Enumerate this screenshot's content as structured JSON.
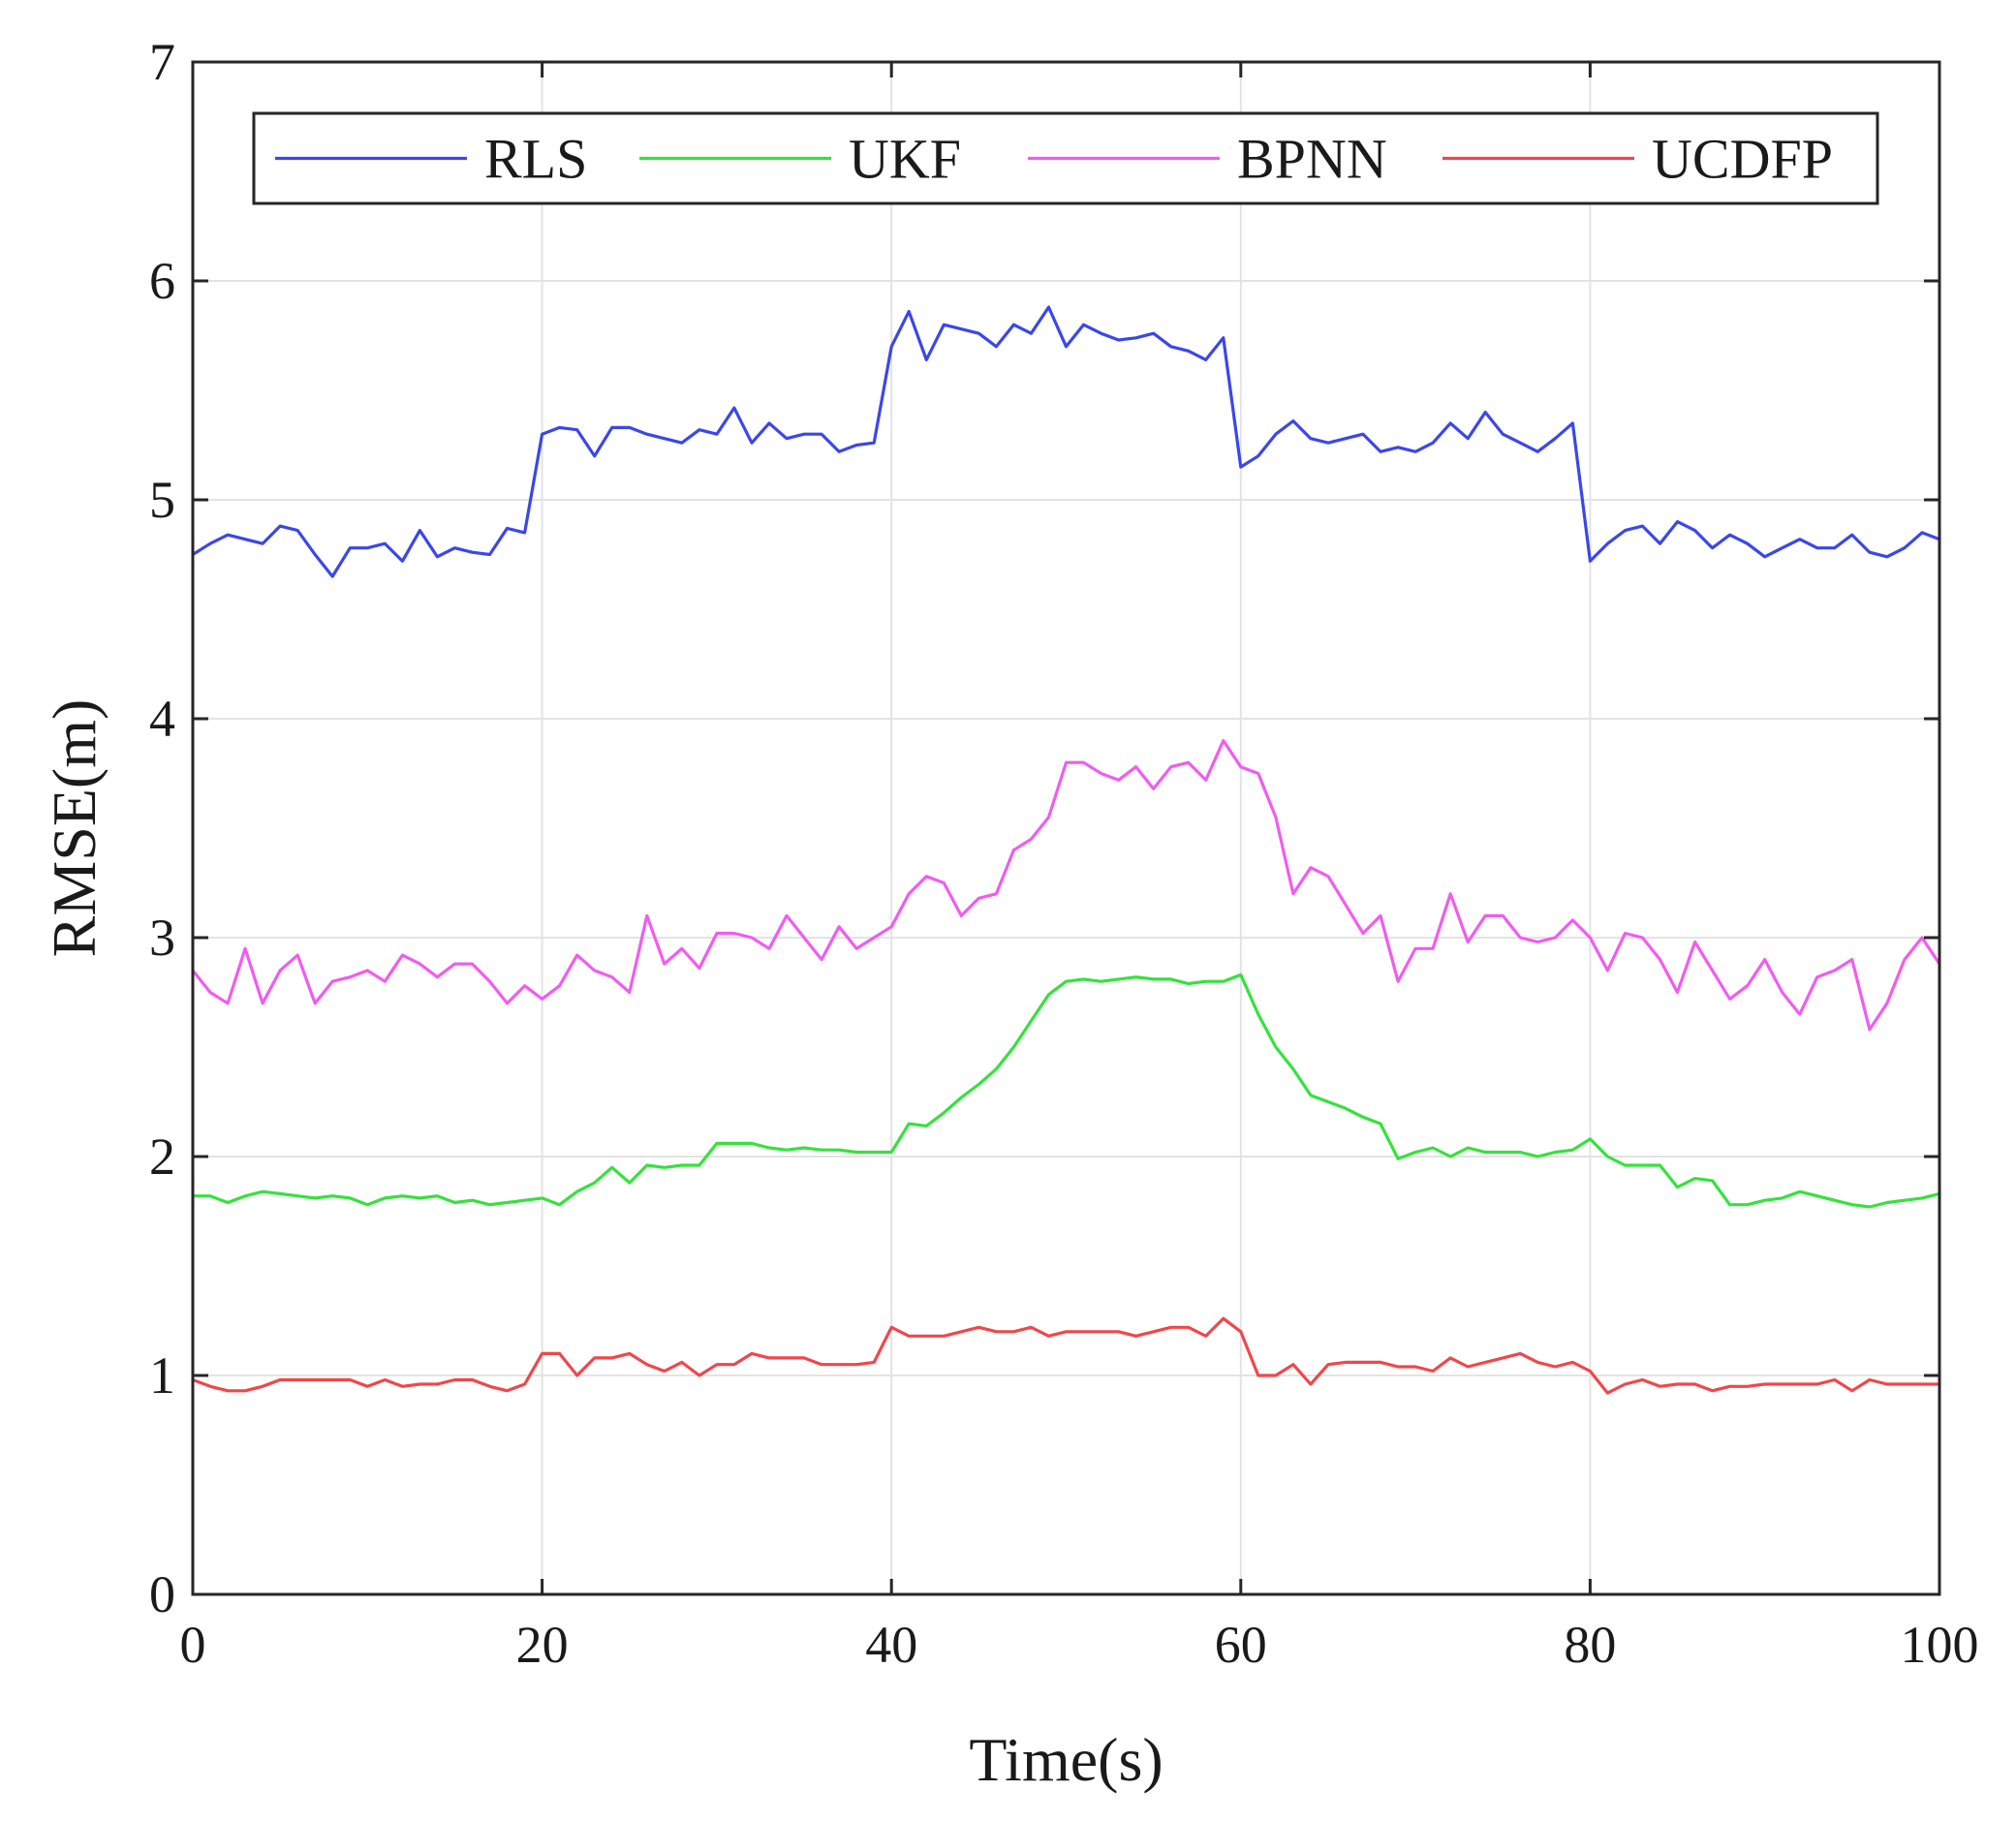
{
  "chart_data": {
    "type": "line",
    "title": "",
    "xlabel": "Time(s)",
    "ylabel": "RMSE(m)",
    "xlim": [
      0,
      100
    ],
    "ylim": [
      0,
      7
    ],
    "xticks": [
      0,
      20,
      40,
      60,
      80,
      100
    ],
    "yticks": [
      0,
      1,
      2,
      3,
      4,
      5,
      6,
      7
    ],
    "grid": true,
    "legend": "top, horizontal, boxed",
    "x": [
      0,
      1,
      2,
      3,
      4,
      5,
      6,
      7,
      8,
      9,
      10,
      11,
      12,
      13,
      14,
      15,
      16,
      17,
      18,
      19,
      20,
      21,
      22,
      23,
      24,
      25,
      26,
      27,
      28,
      29,
      30,
      31,
      32,
      33,
      34,
      35,
      36,
      37,
      38,
      39,
      40,
      41,
      42,
      43,
      44,
      45,
      46,
      47,
      48,
      49,
      50,
      51,
      52,
      53,
      54,
      55,
      56,
      57,
      58,
      59,
      60,
      61,
      62,
      63,
      64,
      65,
      66,
      67,
      68,
      69,
      70,
      71,
      72,
      73,
      74,
      75,
      76,
      77,
      78,
      79,
      80,
      81,
      82,
      83,
      84,
      85,
      86,
      87,
      88,
      89,
      90,
      91,
      92,
      93,
      94,
      95,
      96,
      97,
      98,
      99,
      100
    ],
    "series": [
      {
        "name": "RLS",
        "color": "#3b47e8",
        "values": [
          4.75,
          4.8,
          4.84,
          4.82,
          4.8,
          4.88,
          4.86,
          4.75,
          4.65,
          4.78,
          4.78,
          4.8,
          4.72,
          4.86,
          4.74,
          4.78,
          4.76,
          4.75,
          4.87,
          4.85,
          5.3,
          5.33,
          5.32,
          5.2,
          5.33,
          5.33,
          5.3,
          5.28,
          5.26,
          5.32,
          5.3,
          5.42,
          5.26,
          5.35,
          5.28,
          5.3,
          5.3,
          5.22,
          5.25,
          5.26,
          5.7,
          5.86,
          5.64,
          5.8,
          5.78,
          5.76,
          5.7,
          5.8,
          5.76,
          5.88,
          5.7,
          5.8,
          5.76,
          5.73,
          5.74,
          5.76,
          5.7,
          5.68,
          5.64,
          5.74,
          5.15,
          5.2,
          5.3,
          5.36,
          5.28,
          5.26,
          5.28,
          5.3,
          5.22,
          5.24,
          5.22,
          5.26,
          5.35,
          5.28,
          5.4,
          5.3,
          5.26,
          5.22,
          5.28,
          5.35,
          4.72,
          4.8,
          4.86,
          4.88,
          4.8,
          4.9,
          4.86,
          4.78,
          4.84,
          4.8,
          4.74,
          4.78,
          4.82,
          4.78,
          4.78,
          4.84,
          4.76,
          4.74,
          4.78,
          4.85,
          4.82
        ]
      },
      {
        "name": "UKF",
        "color": "#35e23c",
        "values": [
          1.82,
          1.82,
          1.79,
          1.82,
          1.84,
          1.83,
          1.82,
          1.81,
          1.82,
          1.81,
          1.78,
          1.81,
          1.82,
          1.81,
          1.82,
          1.79,
          1.8,
          1.78,
          1.79,
          1.8,
          1.81,
          1.78,
          1.84,
          1.88,
          1.95,
          1.88,
          1.96,
          1.95,
          1.96,
          1.96,
          2.06,
          2.06,
          2.06,
          2.04,
          2.03,
          2.04,
          2.03,
          2.03,
          2.02,
          2.02,
          2.02,
          2.15,
          2.14,
          2.2,
          2.27,
          2.33,
          2.4,
          2.5,
          2.62,
          2.74,
          2.8,
          2.81,
          2.8,
          2.81,
          2.82,
          2.81,
          2.81,
          2.79,
          2.8,
          2.8,
          2.83,
          2.65,
          2.5,
          2.4,
          2.28,
          2.25,
          2.22,
          2.18,
          2.15,
          1.99,
          2.02,
          2.04,
          2.0,
          2.04,
          2.02,
          2.02,
          2.02,
          2.0,
          2.02,
          2.03,
          2.08,
          2.0,
          1.96,
          1.96,
          1.96,
          1.86,
          1.9,
          1.89,
          1.78,
          1.78,
          1.8,
          1.81,
          1.84,
          1.82,
          1.8,
          1.78,
          1.77,
          1.79,
          1.8,
          1.81,
          1.83
        ]
      },
      {
        "name": "BPNN",
        "color": "#f05cf0",
        "values": [
          2.85,
          2.75,
          2.7,
          2.95,
          2.7,
          2.85,
          2.92,
          2.7,
          2.8,
          2.82,
          2.85,
          2.8,
          2.92,
          2.88,
          2.82,
          2.88,
          2.88,
          2.8,
          2.7,
          2.78,
          2.72,
          2.78,
          2.92,
          2.85,
          2.82,
          2.75,
          3.1,
          2.88,
          2.95,
          2.86,
          3.02,
          3.02,
          3.0,
          2.95,
          3.1,
          3.0,
          2.9,
          3.05,
          2.95,
          3.0,
          3.05,
          3.2,
          3.28,
          3.25,
          3.1,
          3.18,
          3.2,
          3.4,
          3.45,
          3.55,
          3.8,
          3.8,
          3.75,
          3.72,
          3.78,
          3.68,
          3.78,
          3.8,
          3.72,
          3.9,
          3.78,
          3.75,
          3.55,
          3.2,
          3.32,
          3.28,
          3.15,
          3.02,
          3.1,
          2.8,
          2.95,
          2.95,
          3.2,
          2.98,
          3.1,
          3.1,
          3.0,
          2.98,
          3.0,
          3.08,
          3.0,
          2.85,
          3.02,
          3.0,
          2.9,
          2.75,
          2.98,
          2.85,
          2.72,
          2.78,
          2.9,
          2.75,
          2.65,
          2.82,
          2.85,
          2.9,
          2.58,
          2.7,
          2.9,
          3.0,
          2.88
        ]
      },
      {
        "name": "UCDFP",
        "color": "#f0474a",
        "values": [
          0.98,
          0.95,
          0.93,
          0.93,
          0.95,
          0.98,
          0.98,
          0.98,
          0.98,
          0.98,
          0.95,
          0.98,
          0.95,
          0.96,
          0.96,
          0.98,
          0.98,
          0.95,
          0.93,
          0.96,
          1.1,
          1.1,
          1.0,
          1.08,
          1.08,
          1.1,
          1.05,
          1.02,
          1.06,
          1.0,
          1.05,
          1.05,
          1.1,
          1.08,
          1.08,
          1.08,
          1.05,
          1.05,
          1.05,
          1.06,
          1.22,
          1.18,
          1.18,
          1.18,
          1.2,
          1.22,
          1.2,
          1.2,
          1.22,
          1.18,
          1.2,
          1.2,
          1.2,
          1.2,
          1.18,
          1.2,
          1.22,
          1.22,
          1.18,
          1.26,
          1.2,
          1.0,
          1.0,
          1.05,
          0.96,
          1.05,
          1.06,
          1.06,
          1.06,
          1.04,
          1.04,
          1.02,
          1.08,
          1.04,
          1.06,
          1.08,
          1.1,
          1.06,
          1.04,
          1.06,
          1.02,
          0.92,
          0.96,
          0.98,
          0.95,
          0.96,
          0.96,
          0.93,
          0.95,
          0.95,
          0.96,
          0.96,
          0.96,
          0.96,
          0.98,
          0.93,
          0.98,
          0.96,
          0.96,
          0.96,
          0.96
        ]
      }
    ]
  }
}
